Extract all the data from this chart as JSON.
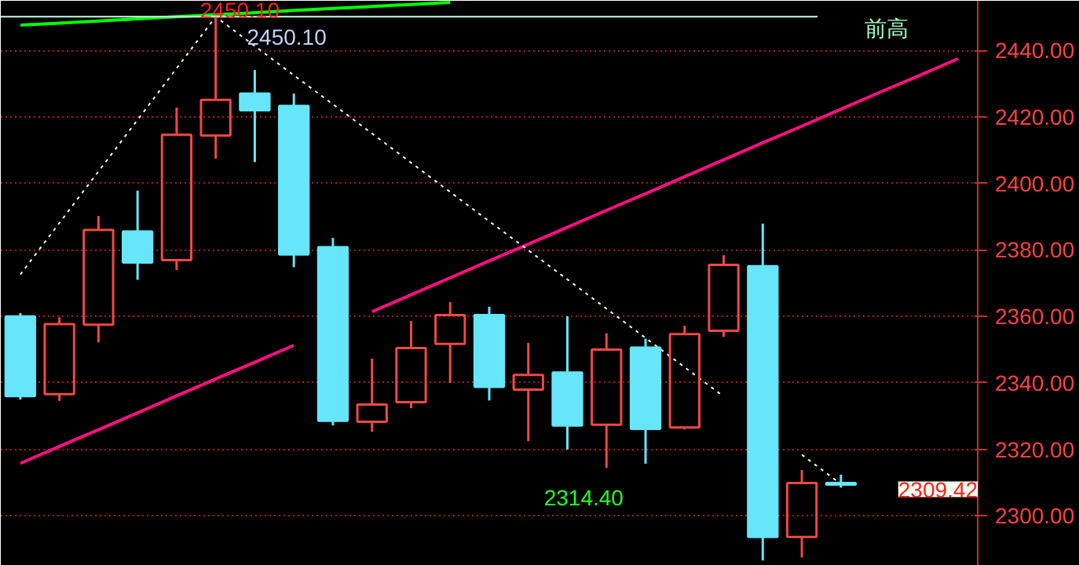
{
  "chart_data": {
    "type": "candlestick",
    "categories": [
      null,
      null,
      null,
      null,
      null,
      null,
      null,
      null,
      null,
      null,
      null,
      null,
      null,
      null,
      null,
      null,
      null,
      null,
      null,
      null,
      null,
      null,
      null,
      null,
      null
    ],
    "ohlc": [
      [
        2360,
        2361,
        2335,
        2336
      ],
      [
        2336.6,
        2359.7,
        2334.6,
        2357.7
      ],
      [
        2357.5,
        2390.2,
        2352.2,
        2386
      ],
      [
        2385.5,
        2397.8,
        2371,
        2376.2
      ],
      [
        2376.9,
        2422.8,
        2373.9,
        2414.6
      ],
      [
        2414.4,
        2450.1,
        2407.4,
        2425.1
      ],
      [
        2427,
        2434.1,
        2406.4,
        2422
      ],
      [
        2423.3,
        2427,
        2374.8,
        2378.6
      ],
      [
        2380.8,
        2383.6,
        2327.2,
        2328.6
      ],
      [
        2328.3,
        2347.3,
        2325.3,
        2333.5
      ],
      [
        2334.2,
        2358.6,
        2332.4,
        2350.5
      ],
      [
        2351.7,
        2364.3,
        2340,
        2360.4
      ],
      [
        2360.4,
        2362.9,
        2334.7,
        2338.8
      ],
      [
        2338,
        2352,
        2322.5,
        2342.4
      ],
      [
        2343.1,
        2360,
        2320,
        2327.2
      ],
      [
        2327.4,
        2354.9,
        2314.4,
        2350
      ],
      [
        2350.6,
        2353.3,
        2315.7,
        2326.2
      ],
      [
        2326.6,
        2357.2,
        2326,
        2354.7
      ],
      [
        2355.7,
        2378.4,
        2353.8,
        2375.5
      ],
      [
        2375.1,
        2387.9,
        2286.6,
        2293.7
      ],
      [
        2293.7,
        2313.8,
        2287.5,
        2309.9
      ],
      [
        2309.9,
        2312.4,
        2308.5,
        2309.42
      ],
      null,
      null,
      null
    ],
    "colors": [
      "#66e5fb",
      "#f04848",
      "#f04848",
      "#66e5fb",
      "#f04848",
      "#f04848",
      "#66e5fb",
      "#66e5fb",
      "#66e5fb",
      "#f04848",
      "#f04848",
      "#f04848",
      "#66e5fb",
      "#f04848",
      "#66e5fb",
      "#f04848",
      "#66e5fb",
      "#f04848",
      "#f04848",
      "#66e5fb",
      "#f04848",
      "#66e5fb",
      null,
      null,
      null
    ],
    "series": [
      {
        "type": "line",
        "values": [
          2315.8,
          2320.9,
          2325.9,
          2331.0,
          2336.1,
          2341.2,
          2346.2,
          2351.3,
          null,
          2361.4,
          2366.5,
          2371.6,
          2376.7,
          2381.7,
          2386.8,
          2391.9,
          2396.9,
          2402.0,
          2407.1,
          2412.2,
          2417.2,
          2422.3,
          2427.4,
          2432.4,
          2437.5
        ],
        "color": "#ff1080",
        "line_style": "solid"
      },
      {
        "type": "line",
        "values": [
          2447.6,
          2448.2,
          2448.8,
          2449.5,
          2450.1,
          2450.7,
          2451.3,
          2452.0,
          2452.6,
          2453.2,
          2453.8,
          2454.4,
          null,
          null,
          null,
          null,
          null,
          null,
          null,
          null,
          null,
          null,
          null,
          null,
          null
        ],
        "color": "#00ff00",
        "line_style": "solid"
      },
      {
        "type": "line",
        "values": [
          2372.6,
          2388.1,
          2403.6,
          2419.1,
          2434.6,
          2450.1,
          2441.3,
          2432.5,
          2423.8,
          2415.0,
          2406.2,
          2397.4,
          2388.6,
          2379.9,
          2371.1,
          2362.3,
          2353.5,
          2344.7,
          2335.9,
          null,
          2318.4,
          2309.6,
          null,
          null,
          null
        ],
        "color": "#ffffff",
        "line_style": "dotted"
      }
    ],
    "ylim": [
      2285,
      2454.9
    ],
    "yticks": [
      {
        "value": 2300,
        "label": "2300.00"
      },
      {
        "value": 2320,
        "label": "2320.00"
      },
      {
        "value": 2340,
        "label": "2340.00"
      },
      {
        "value": 2360,
        "label": "2360.00"
      },
      {
        "value": 2380,
        "label": "2380.00"
      },
      {
        "value": 2400,
        "label": "2400.00"
      },
      {
        "value": 2420,
        "label": "2420.00"
      },
      {
        "value": 2440,
        "label": "2440.00"
      }
    ],
    "grid": "y",
    "tick_labels": "y",
    "ref_lines": [
      {
        "axis": "y",
        "value": 2450.1,
        "label": "2450.10",
        "color": "#c8ffe8"
      }
    ],
    "annotations": [
      {
        "text": "2450.10",
        "y": 2450.1
      },
      "前高",
      "2314.40",
      "2309.42"
    ]
  }
}
